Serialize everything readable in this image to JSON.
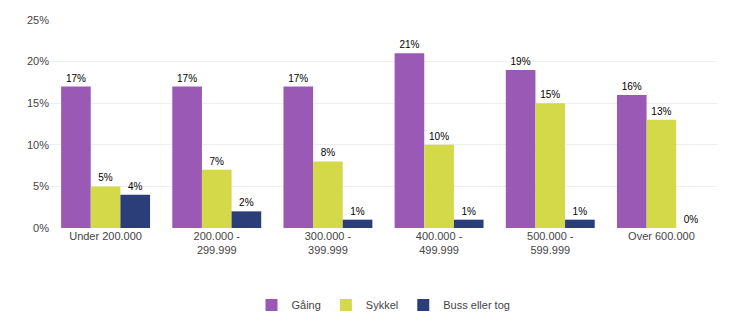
{
  "chart_data": {
    "type": "bar",
    "categories": [
      "Under 200.000",
      "200.000 -\n299.999",
      "300.000 -\n399.999",
      "400.000 -\n499.999",
      "500.000 -\n599.999",
      "Over 600.000"
    ],
    "series": [
      {
        "name": "Gåing",
        "color": "#9B59B6",
        "values": [
          17,
          17,
          17,
          21,
          19,
          16
        ],
        "value_labels": [
          "17%",
          "17%",
          "17%",
          "21%",
          "19%",
          "16%"
        ]
      },
      {
        "name": "Sykkel",
        "color": "#D4D94A",
        "values": [
          5,
          7,
          8,
          10,
          15,
          13
        ],
        "value_labels": [
          "5%",
          "7%",
          "8%",
          "10%",
          "15%",
          "13%"
        ]
      },
      {
        "name": "Buss eller tog",
        "color": "#2C3E7A",
        "values": [
          4,
          2,
          1,
          1,
          1,
          0
        ],
        "value_labels": [
          "4%",
          "2%",
          "1%",
          "1%",
          "1%",
          "0%"
        ]
      }
    ],
    "ylim": [
      0,
      25
    ],
    "yticks": [
      {
        "value": 0,
        "label": "0%"
      },
      {
        "value": 5,
        "label": "5%"
      },
      {
        "value": 10,
        "label": "10%"
      },
      {
        "value": 15,
        "label": "15%"
      },
      {
        "value": 20,
        "label": "20%"
      },
      {
        "value": 25,
        "label": "25%"
      }
    ],
    "grid": true,
    "legend": "bottom",
    "data_labels": true
  }
}
